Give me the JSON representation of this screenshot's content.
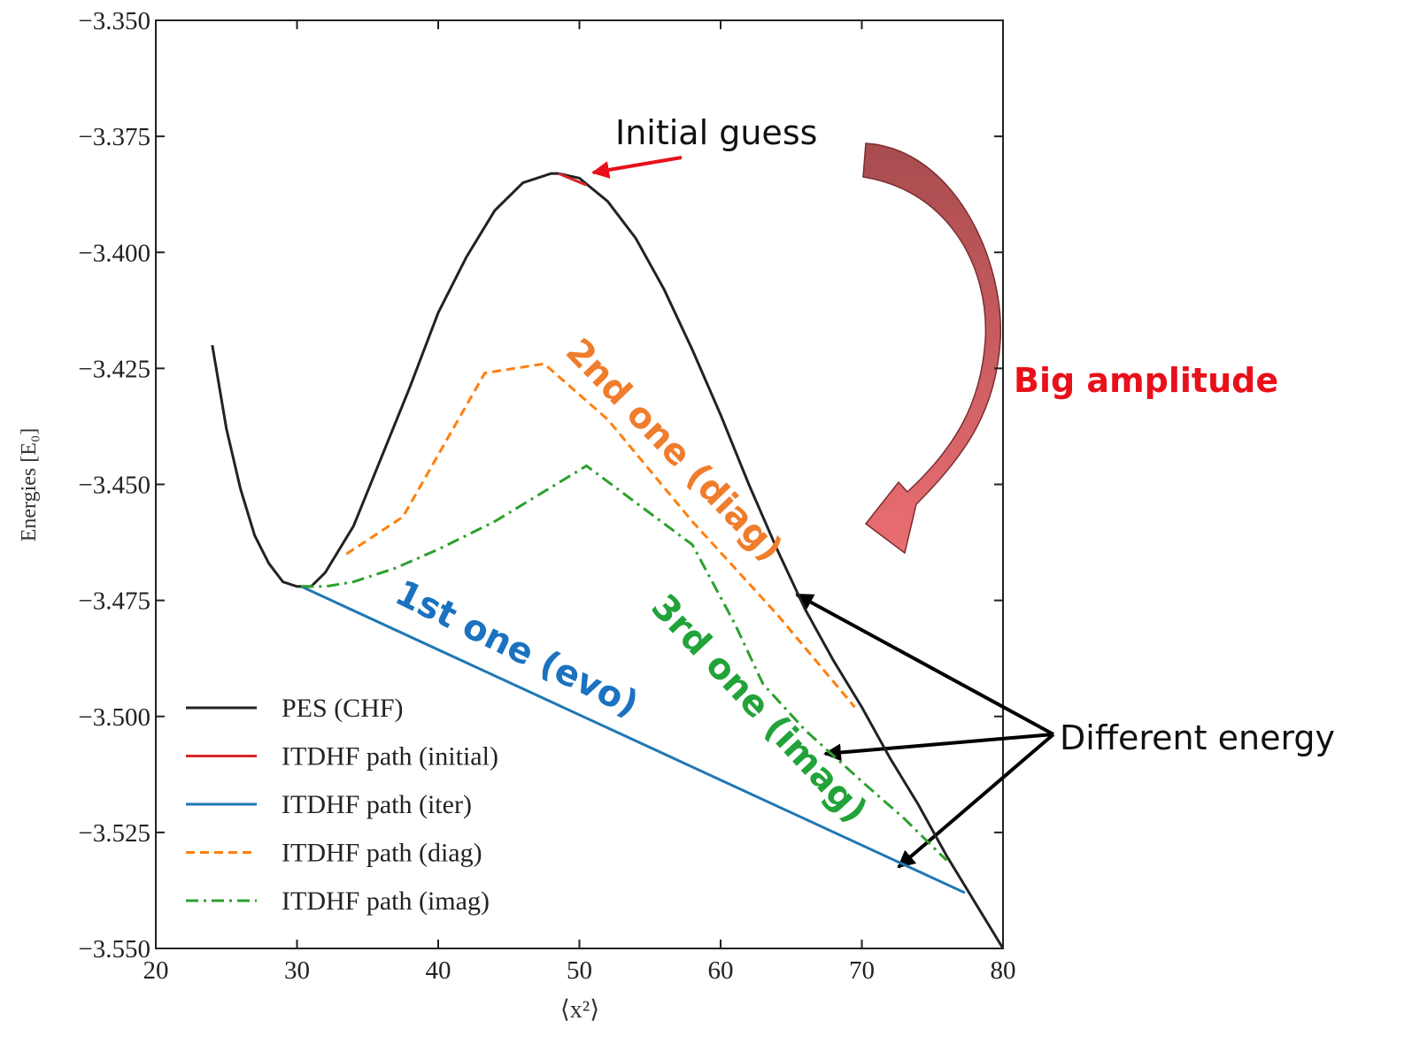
{
  "chart_data": {
    "type": "line",
    "xlabel": "⟨x²⟩",
    "ylabel": "Energies [E₀]",
    "xlim": [
      20,
      80
    ],
    "ylim": [
      -3.55,
      -3.35
    ],
    "xticks": [
      20,
      30,
      40,
      50,
      60,
      70,
      80
    ],
    "yticks": [
      {
        "value": -3.35,
        "label": "−3.350"
      },
      {
        "value": -3.375,
        "label": "−3.375"
      },
      {
        "value": -3.4,
        "label": "−3.400"
      },
      {
        "value": -3.425,
        "label": "−3.425"
      },
      {
        "value": -3.45,
        "label": "−3.450"
      },
      {
        "value": -3.475,
        "label": "−3.475"
      },
      {
        "value": -3.5,
        "label": "−3.500"
      },
      {
        "value": -3.525,
        "label": "−3.525"
      },
      {
        "value": -3.55,
        "label": "−3.550"
      }
    ],
    "legend": "lower left",
    "series": [
      {
        "name": "PES (CHF)",
        "color": "#222222",
        "style": "solid",
        "x": [
          24,
          25,
          26,
          27,
          28,
          29,
          30,
          31,
          32,
          34,
          36,
          38,
          40,
          42,
          44,
          46,
          48,
          48.5,
          50,
          52,
          54,
          56,
          58,
          60,
          62,
          64,
          66,
          68,
          70,
          72,
          74,
          76,
          78,
          80
        ],
        "values": [
          -3.42,
          -3.438,
          -3.451,
          -3.461,
          -3.467,
          -3.471,
          -3.472,
          -3.472,
          -3.469,
          -3.459,
          -3.444,
          -3.429,
          -3.413,
          -3.401,
          -3.391,
          -3.385,
          -3.383,
          -3.383,
          -3.384,
          -3.389,
          -3.397,
          -3.408,
          -3.421,
          -3.435,
          -3.45,
          -3.464,
          -3.477,
          -3.488,
          -3.498,
          -3.509,
          -3.519,
          -3.53,
          -3.54,
          -3.55
        ]
      },
      {
        "name": "ITDHF path (initial)",
        "color": "#d62728",
        "style": "solid",
        "x": [
          48.5,
          50.5
        ],
        "values": [
          -3.383,
          -3.3855
        ]
      },
      {
        "name": "ITDHF path (iter)",
        "color": "#1f77b4",
        "style": "solid",
        "x": [
          30.3,
          77.3
        ],
        "values": [
          -3.472,
          -3.538
        ]
      },
      {
        "name": "ITDHF path (diag)",
        "color": "#ff7f0e",
        "style": "dashed",
        "x": [
          33.5,
          37.5,
          43.3,
          47.5,
          52,
          58,
          64,
          69.5
        ],
        "values": [
          -3.465,
          -3.457,
          -3.426,
          -3.424,
          -3.436,
          -3.458,
          -3.478,
          -3.498
        ]
      },
      {
        "name": "ITDHF path (imag)",
        "color": "#2ca02c",
        "style": "dashdot",
        "x": [
          30.3,
          32,
          34,
          37,
          40,
          44,
          50.5,
          58,
          61,
          63,
          66,
          70,
          73,
          76
        ],
        "values": [
          -3.472,
          -3.472,
          -3.471,
          -3.468,
          -3.464,
          -3.458,
          -3.446,
          -3.463,
          -3.48,
          -3.493,
          -3.503,
          -3.514,
          -3.522,
          -3.531
        ]
      }
    ],
    "annotations": [
      {
        "text": "Initial guess",
        "color": "#111111"
      },
      {
        "text": "Big amplitude",
        "color": "#e8101a"
      },
      {
        "text": "Different energy",
        "color": "#111111"
      },
      {
        "text": "2nd one (diag)",
        "color": "#ef7d2c"
      },
      {
        "text": "3rd one (imag)",
        "color": "#22a33a"
      },
      {
        "text": "1st one (evo)",
        "color": "#1a72c0"
      }
    ]
  }
}
